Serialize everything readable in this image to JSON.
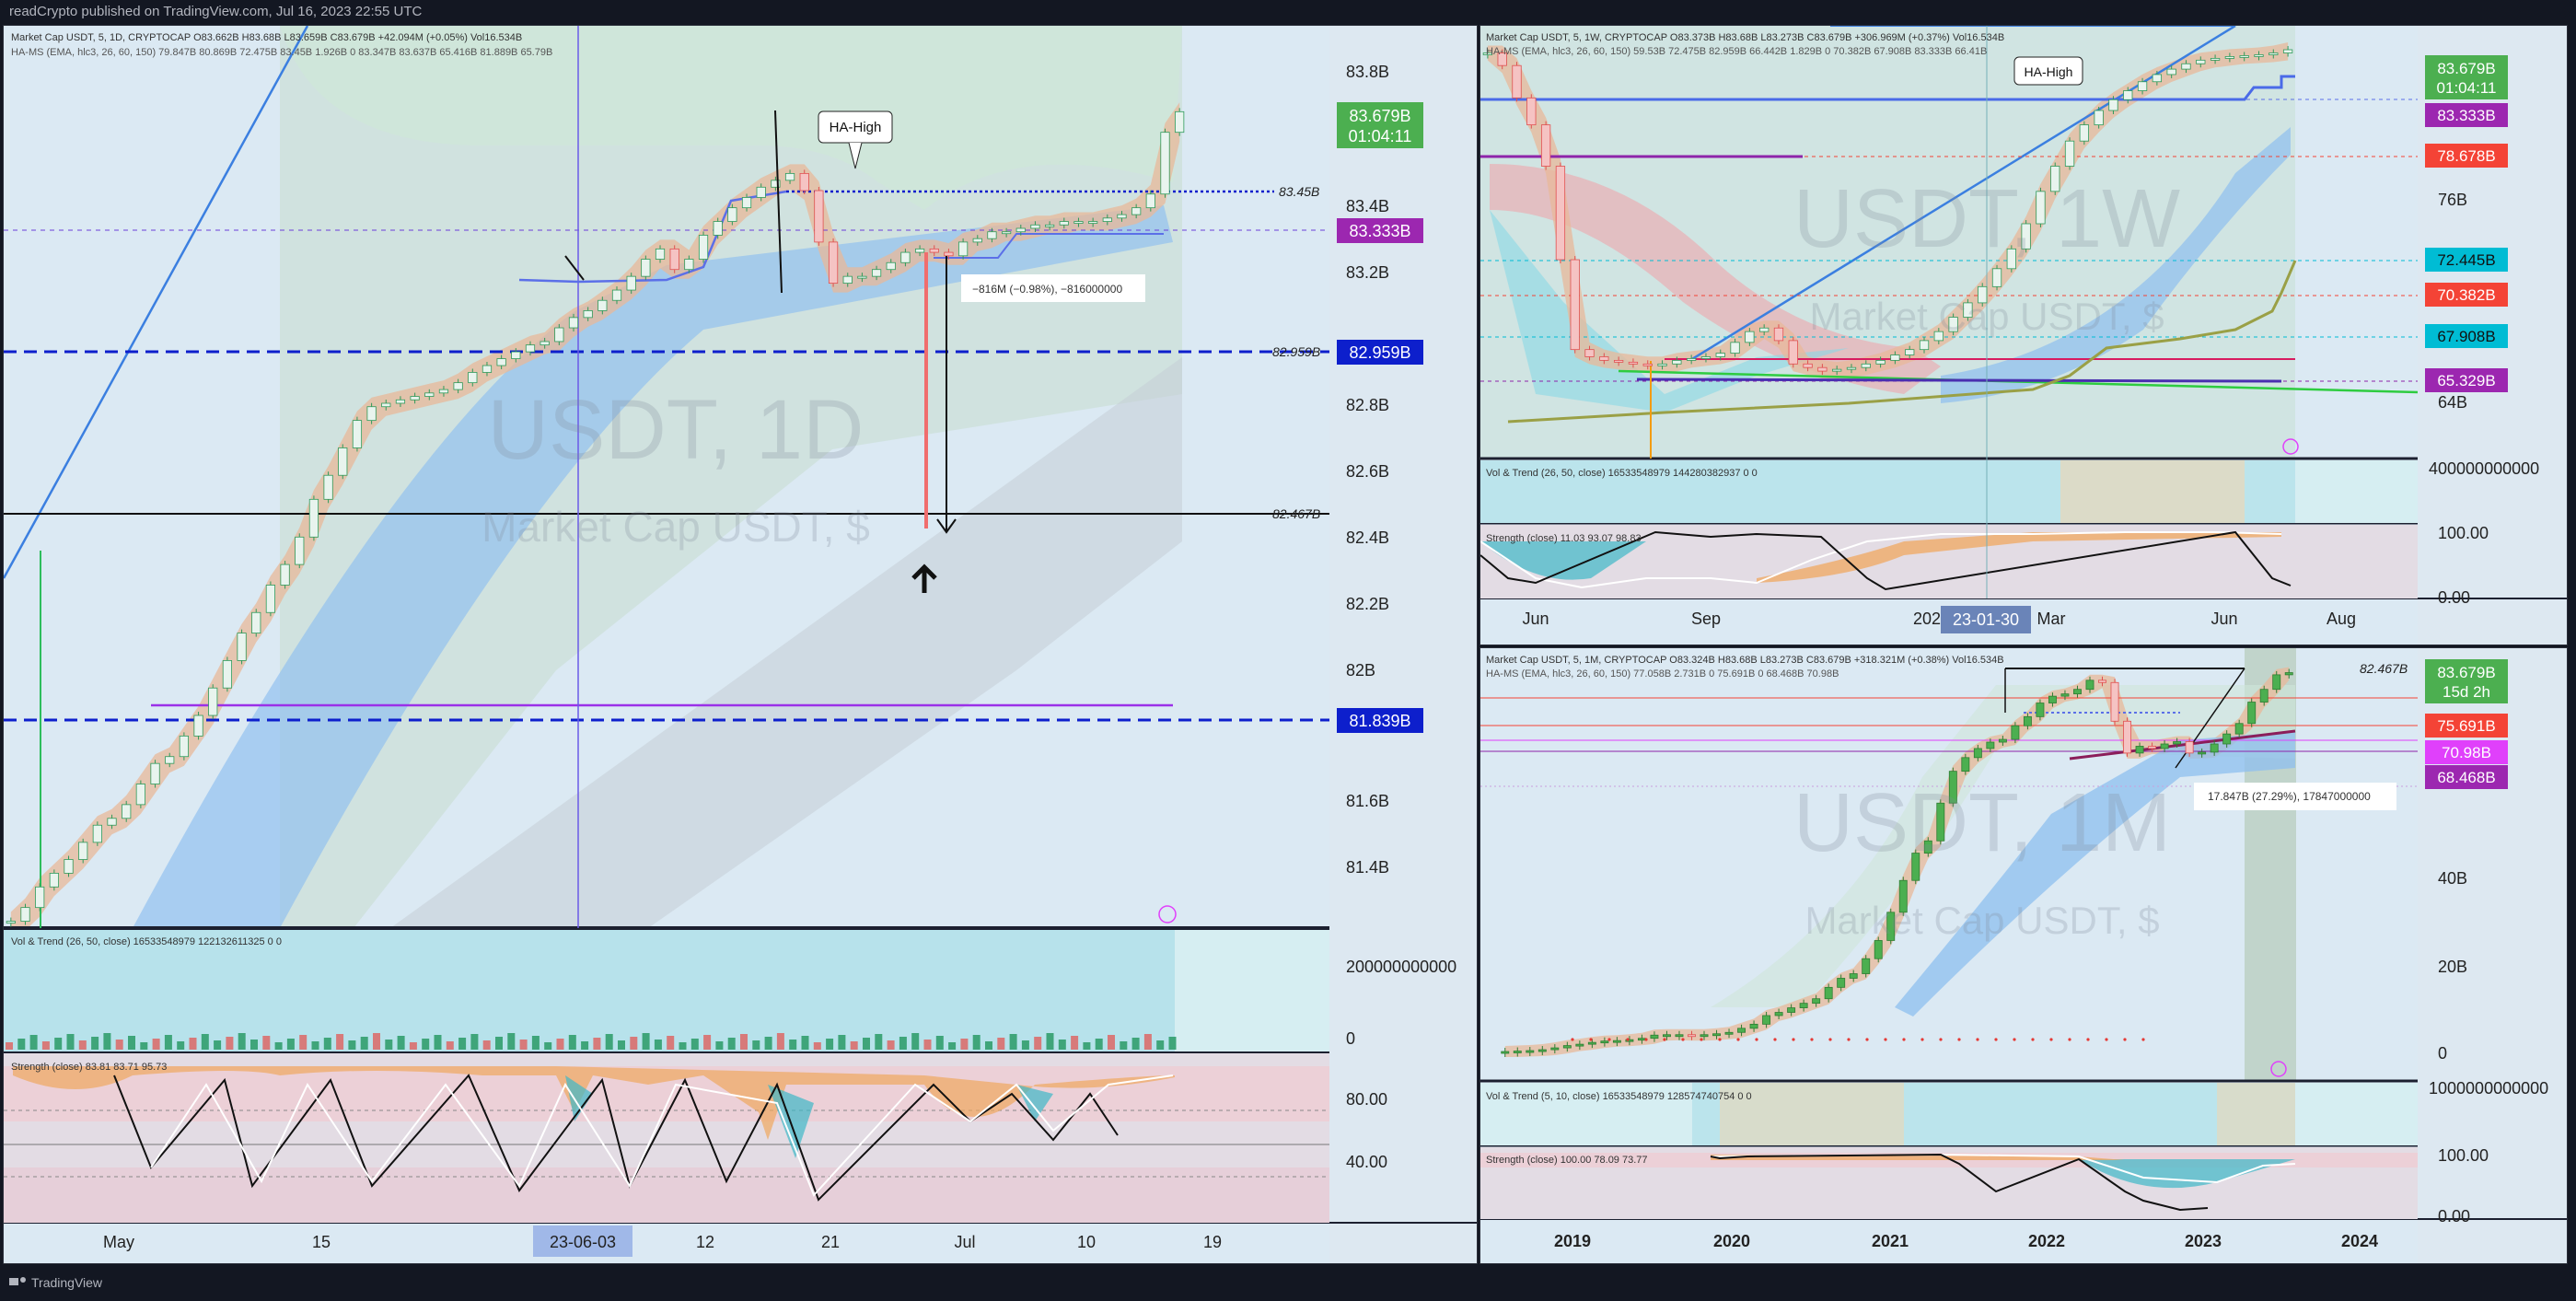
{
  "header": {
    "publish_line": "readCrypto published on TradingView.com, Jul 16, 2023 22:55 UTC"
  },
  "footer": {
    "brand": "TradingView"
  },
  "chart_data": [
    {
      "type": "candlestick",
      "timeframe": "1D",
      "legend_line1": "Market Cap USDT, 5, 1D, CRYPTOCAP  O83.662B  H83.68B  L83.659B  C83.679B  +42.094M (+0.05%)  Vol16.534B",
      "legend_line2": "HA-MS (EMA, hlc3, 26, 60, 150)  79.847B  80.869B  72.475B  83.45B  1.926B  0  83.347B  83.637B  65.416B  81.889B  65.79B",
      "watermark_title": "USDT, 1D",
      "watermark_sub": "Market Cap USDT, $",
      "y_ticks": [
        "83.8B",
        "83.4B",
        "83.2B",
        "82.8B",
        "82.6B",
        "82.4B",
        "82.2B",
        "82B",
        "81.6B",
        "81.4B"
      ],
      "x_ticks": [
        "May",
        "15",
        "12",
        "21",
        "Jul",
        "10",
        "19"
      ],
      "x_highlight": "23-06-03",
      "price_labels": [
        {
          "text": "83.679B",
          "sub": "01:04:11",
          "color": "#4caf50"
        },
        {
          "text": "83.333B",
          "color": "#9c27b0"
        },
        {
          "text": "82.959B",
          "color": "#0d1fcc"
        },
        {
          "text": "81.839B",
          "color": "#0d1fcc"
        }
      ],
      "line_labels": [
        "83.45B",
        "82.959B",
        "82.467B"
      ],
      "callout": "HA-High",
      "measure_note": "−816M (−0.98%), −816000000",
      "vol_legend": "Vol & Trend (26, 50, close)  16533548979  122132611325  0  0",
      "vol_ticks": [
        "200000000000",
        "0"
      ],
      "strength_legend": "Strength (close)  83.81  83.71  95.73",
      "strength_ticks": [
        "80.00",
        "40.00"
      ],
      "close_series": [
        81.32,
        81.36,
        81.42,
        81.46,
        81.5,
        81.55,
        81.6,
        81.62,
        81.66,
        81.72,
        81.78,
        81.8,
        81.86,
        81.92,
        82.0,
        82.08,
        82.16,
        82.22,
        82.3,
        82.36,
        82.44,
        82.55,
        82.62,
        82.7,
        82.78,
        82.82,
        82.83,
        82.84,
        82.85,
        82.86,
        82.87,
        82.89,
        82.92,
        82.94,
        82.96,
        82.98,
        83.0,
        83.01,
        83.05,
        83.08,
        83.1,
        83.13,
        83.16,
        83.2,
        83.25,
        83.28,
        83.22,
        83.25,
        83.32,
        83.36,
        83.4,
        83.43,
        83.46,
        83.48,
        83.5,
        83.45,
        83.3,
        83.18,
        83.2,
        83.2,
        83.22,
        83.24,
        83.27,
        83.28,
        83.27,
        83.26,
        83.3,
        83.31,
        83.33,
        83.33,
        83.34,
        83.35,
        83.35,
        83.36,
        83.36,
        83.36,
        83.37,
        83.38,
        83.4,
        83.44,
        83.62,
        83.68
      ]
    },
    {
      "type": "candlestick",
      "timeframe": "1W",
      "legend_line1": "Market Cap USDT, 5, 1W, CRYPTOCAP  O83.373B  H83.68B  L83.273B  C83.679B  +306.969M (+0.37%)  Vol16.534B",
      "legend_line2": "HA-MS (EMA, hlc3, 26, 60, 150)  59.53B  72.475B  82.959B  66.442B  1.829B  0  70.382B  67.908B  83.333B  66.41B",
      "watermark_title": "USDT, 1W",
      "watermark_sub": "Market Cap USDT, $",
      "y_ticks": [
        "76B",
        "64B"
      ],
      "x_ticks": [
        "Jun",
        "Sep",
        "202",
        "Mar",
        "Jun",
        "Aug"
      ],
      "x_highlight": "23-01-30",
      "price_labels": [
        {
          "text": "83.679B",
          "sub": "01:04:11",
          "color": "#4caf50"
        },
        {
          "text": "83.333B",
          "color": "#9c27b0"
        },
        {
          "text": "78.678B",
          "color": "#f44336"
        },
        {
          "text": "72.445B",
          "color": "#00bcd4"
        },
        {
          "text": "70.382B",
          "color": "#f44336"
        },
        {
          "text": "67.908B",
          "color": "#00bcd4"
        },
        {
          "text": "65.329B",
          "color": "#9c27b0"
        }
      ],
      "callout": "HA-High",
      "vol_legend": "Vol & Trend (26, 50, close)  16533548979  144280382937  0  0",
      "vol_ticks": [
        "400000000000"
      ],
      "strength_legend": "Strength (close)  11.03  93.07  98.83",
      "strength_ticks": [
        "100.00",
        "0.00"
      ],
      "close_series": [
        83.5,
        82.8,
        81.0,
        79.5,
        77.2,
        72.0,
        67.0,
        66.6,
        66.4,
        66.3,
        66.2,
        66.1,
        66.2,
        66.4,
        66.5,
        66.6,
        66.8,
        67.4,
        68.0,
        68.2,
        67.5,
        66.2,
        66.0,
        65.8,
        65.9,
        66.0,
        66.2,
        66.4,
        66.7,
        67.0,
        67.5,
        68.0,
        68.8,
        69.6,
        70.5,
        71.5,
        72.6,
        74.0,
        75.8,
        77.2,
        78.6,
        79.5,
        80.3,
        80.9,
        81.4,
        81.9,
        82.3,
        82.6,
        82.9,
        83.1,
        83.2,
        83.3,
        83.35,
        83.4,
        83.5,
        83.68
      ]
    },
    {
      "type": "candlestick",
      "timeframe": "1M",
      "legend_line1": "Market Cap USDT, 5, 1M, CRYPTOCAP  O83.324B  H83.68B  L83.273B  C83.679B  +318.321M (+0.38%)  Vol16.534B",
      "legend_line2": "HA-MS (EMA, hlc3, 26, 60, 150)  77.058B  2.731B  0  75.691B  0  68.468B  70.98B",
      "watermark_title": "USDT, 1M",
      "watermark_sub": "Market Cap USDT, $",
      "y_ticks": [
        "40B",
        "20B",
        "0"
      ],
      "x_ticks": [
        "2019",
        "2020",
        "2021",
        "2022",
        "2023",
        "2024"
      ],
      "price_labels": [
        {
          "text": "83.679B",
          "sub": "15d 2h",
          "color": "#4caf50"
        },
        {
          "text": "75.691B",
          "color": "#f44336"
        },
        {
          "text": "70.98B",
          "color": "#e040fb"
        },
        {
          "text": "68.468B",
          "color": "#9c27b0"
        }
      ],
      "line_labels": [
        "82.467B"
      ],
      "measure_note": "17.847B (27.29%), 17847000000",
      "vol_legend": "Vol & Trend (5, 10, close)  16533548979  128574740754  0  0",
      "vol_ticks": [
        "1000000000000"
      ],
      "strength_legend": "Strength (close)  100.00  78.09  73.77",
      "strength_ticks": [
        "100.00",
        "0.00"
      ],
      "close_series": [
        0.4,
        0.5,
        0.6,
        0.8,
        1.2,
        1.7,
        2.0,
        2.4,
        2.7,
        2.8,
        3.0,
        3.3,
        4.0,
        4.1,
        4.1,
        4.0,
        4.1,
        4.3,
        4.6,
        5.5,
        6.4,
        8.3,
        9.0,
        10.0,
        11.0,
        12.0,
        14.5,
        16.5,
        17.5,
        20.8,
        24.8,
        31.0,
        38.0,
        44.0,
        46.7,
        55.0,
        62.0,
        65.0,
        67.0,
        68.4,
        69.0,
        72.0,
        74.0,
        77.0,
        78.5,
        79.0,
        80.0,
        82.0,
        81.5,
        73.0,
        66.0,
        67.5,
        67.0,
        68.0,
        68.5,
        66.0,
        66.2,
        68.0,
        70.2,
        72.5,
        77.2,
        80.0,
        83.2,
        83.68
      ]
    }
  ]
}
